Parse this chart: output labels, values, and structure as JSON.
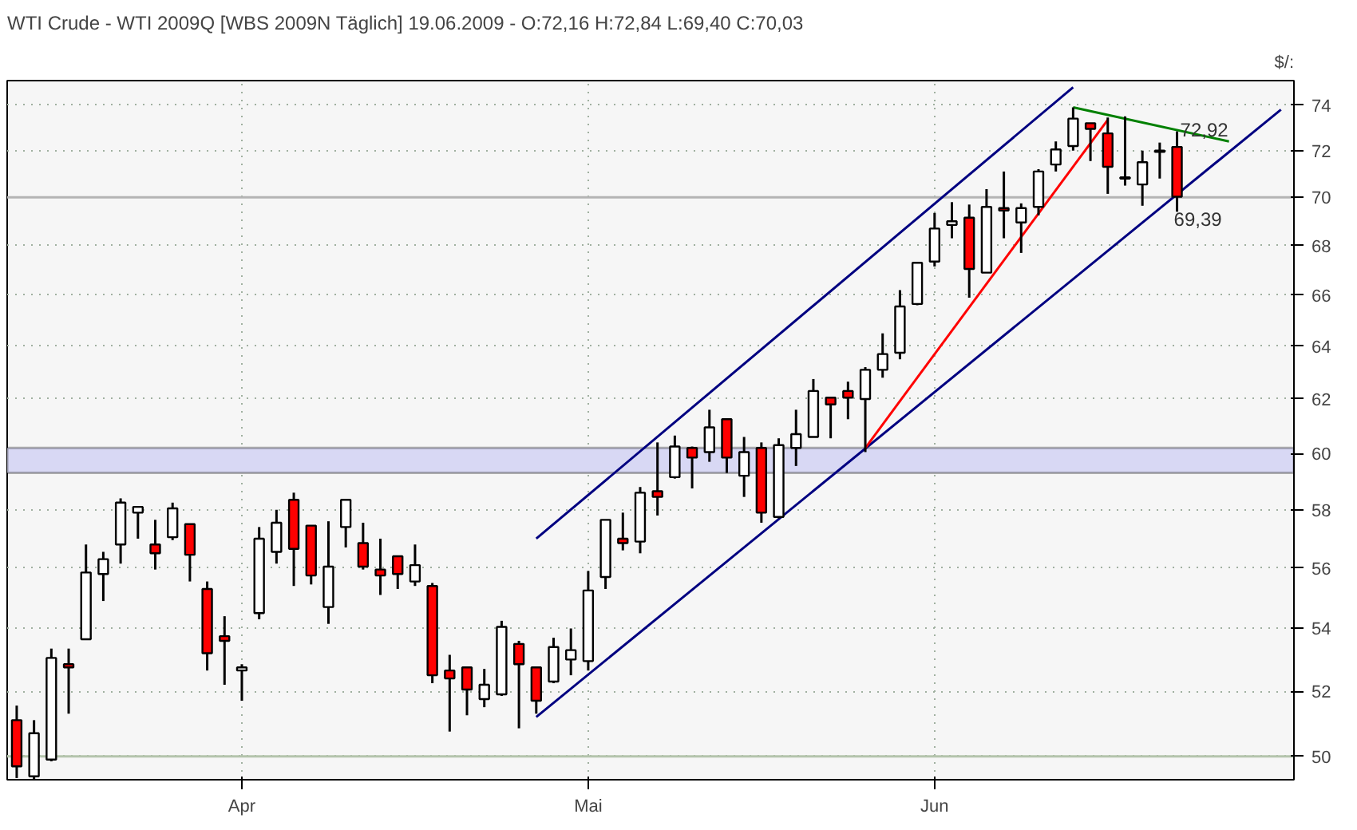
{
  "chart_data": {
    "type": "candlestick",
    "title": "WTI Crude - WTI 2009Q [WBS 2009N Täglich] 19.06.2009 - O:72,16 H:72,84 L:69,40 C:70,03",
    "ylabel": "$/:",
    "categories": [
      null,
      null,
      null,
      null,
      null,
      null,
      null,
      null,
      null,
      null,
      null,
      null,
      null,
      "Apr",
      null,
      null,
      null,
      null,
      null,
      null,
      null,
      null,
      null,
      null,
      null,
      null,
      null,
      null,
      null,
      null,
      null,
      null,
      null,
      "Mai",
      null,
      null,
      null,
      null,
      null,
      null,
      null,
      null,
      null,
      null,
      null,
      null,
      null,
      null,
      null,
      null,
      null,
      null,
      null,
      "Jun",
      null,
      null,
      null,
      null,
      null,
      null,
      null,
      null,
      null,
      null,
      null,
      null,
      null,
      null,
      null,
      null,
      null,
      null,
      null,
      null
    ],
    "ohlc": [
      [
        51.1,
        51.55,
        49.35,
        49.7
      ],
      [
        49.4,
        51.1,
        49.3,
        50.7
      ],
      [
        49.9,
        53.35,
        49.85,
        53.05
      ],
      [
        52.85,
        53.35,
        51.3,
        52.75
      ],
      [
        53.65,
        56.8,
        53.65,
        55.85
      ],
      [
        55.8,
        56.55,
        54.9,
        56.3
      ],
      [
        56.8,
        58.4,
        56.15,
        58.25
      ],
      [
        57.9,
        58.1,
        57.0,
        58.1
      ],
      [
        56.8,
        57.65,
        55.95,
        56.5
      ],
      [
        57.05,
        58.25,
        56.95,
        58.05
      ],
      [
        57.5,
        57.5,
        55.55,
        56.45
      ],
      [
        55.3,
        55.55,
        52.65,
        53.2
      ],
      [
        53.75,
        54.4,
        52.2,
        53.6
      ],
      [
        52.65,
        52.85,
        51.7,
        52.75
      ],
      [
        54.5,
        57.4,
        54.3,
        57.0
      ],
      [
        56.55,
        58.0,
        56.15,
        57.55
      ],
      [
        58.35,
        58.6,
        55.4,
        56.65
      ],
      [
        57.45,
        57.45,
        55.45,
        55.75
      ],
      [
        54.7,
        57.6,
        54.15,
        56.05
      ],
      [
        57.4,
        58.35,
        56.7,
        58.35
      ],
      [
        56.85,
        57.55,
        55.95,
        56.05
      ],
      [
        55.95,
        57.0,
        55.1,
        55.75
      ],
      [
        56.4,
        56.4,
        55.3,
        55.8
      ],
      [
        55.55,
        56.8,
        55.4,
        56.1
      ],
      [
        55.4,
        55.5,
        52.25,
        52.5
      ],
      [
        52.65,
        53.15,
        50.75,
        52.4
      ],
      [
        52.75,
        52.75,
        51.25,
        52.05
      ],
      [
        51.75,
        52.7,
        51.5,
        52.2
      ],
      [
        51.9,
        54.25,
        51.85,
        54.05
      ],
      [
        53.5,
        53.6,
        50.85,
        52.85
      ],
      [
        52.75,
        52.75,
        51.3,
        51.7
      ],
      [
        52.3,
        53.7,
        52.25,
        53.4
      ],
      [
        53.0,
        54.0,
        52.5,
        53.3
      ],
      [
        52.95,
        55.9,
        52.65,
        55.25
      ],
      [
        55.7,
        57.65,
        55.3,
        57.65
      ],
      [
        57.0,
        57.9,
        56.6,
        56.85
      ],
      [
        56.9,
        58.8,
        56.5,
        58.6
      ],
      [
        58.65,
        60.4,
        57.8,
        58.45
      ],
      [
        59.15,
        60.65,
        59.1,
        60.25
      ],
      [
        60.2,
        60.25,
        58.75,
        59.85
      ],
      [
        60.05,
        61.6,
        59.7,
        60.95
      ],
      [
        61.25,
        61.25,
        59.3,
        59.85
      ],
      [
        59.2,
        60.6,
        58.45,
        60.05
      ],
      [
        60.2,
        60.4,
        57.55,
        57.9
      ],
      [
        57.75,
        60.55,
        57.7,
        60.3
      ],
      [
        60.2,
        61.6,
        59.55,
        60.7
      ],
      [
        60.6,
        62.75,
        60.6,
        62.3
      ],
      [
        62.05,
        62.05,
        60.55,
        61.8
      ],
      [
        62.3,
        62.65,
        61.25,
        62.05
      ],
      [
        62.0,
        63.2,
        60.05,
        63.1
      ],
      [
        63.1,
        64.5,
        62.8,
        63.7
      ],
      [
        63.75,
        66.2,
        63.5,
        65.55
      ],
      [
        65.65,
        67.3,
        65.6,
        67.3
      ],
      [
        67.35,
        69.35,
        67.15,
        68.7
      ],
      [
        68.85,
        69.8,
        68.3,
        69.0
      ],
      [
        69.15,
        69.7,
        65.9,
        67.05
      ],
      [
        66.9,
        70.35,
        66.9,
        69.6
      ],
      [
        69.55,
        71.1,
        68.3,
        69.45
      ],
      [
        68.95,
        69.75,
        67.7,
        69.55
      ],
      [
        69.6,
        71.2,
        69.25,
        71.1
      ],
      [
        71.4,
        72.4,
        71.1,
        72.05
      ],
      [
        72.2,
        73.9,
        72.0,
        73.4
      ],
      [
        73.2,
        73.2,
        71.55,
        72.95
      ],
      [
        72.75,
        73.45,
        70.15,
        71.3
      ],
      [
        70.8,
        73.5,
        70.5,
        70.85
      ],
      [
        70.55,
        72.0,
        69.65,
        71.5
      ],
      [
        71.95,
        72.35,
        70.8,
        72.0
      ],
      [
        72.16,
        72.84,
        69.4,
        70.03
      ],
      null,
      null,
      null,
      null,
      null,
      null
    ],
    "colors": [
      "#ff0000",
      "#ffffff",
      "#ffffff",
      "#ff0000",
      "#ffffff",
      "#ffffff",
      "#ffffff",
      "#ffffff",
      "#ff0000",
      "#ffffff",
      "#ff0000",
      "#ff0000",
      "#ff0000",
      "#ffffff",
      "#ffffff",
      "#ffffff",
      "#ff0000",
      "#ff0000",
      "#ffffff",
      "#ffffff",
      "#ff0000",
      "#ff0000",
      "#ff0000",
      "#ffffff",
      "#ff0000",
      "#ff0000",
      "#ff0000",
      "#ffffff",
      "#ffffff",
      "#ff0000",
      "#ff0000",
      "#ffffff",
      "#ffffff",
      "#ffffff",
      "#ffffff",
      "#ff0000",
      "#ffffff",
      "#ff0000",
      "#ffffff",
      "#ff0000",
      "#ffffff",
      "#ff0000",
      "#ffffff",
      "#ff0000",
      "#ffffff",
      "#ffffff",
      "#ffffff",
      "#ff0000",
      "#ff0000",
      "#ffffff",
      "#ffffff",
      "#ffffff",
      "#ffffff",
      "#ffffff",
      "#ffffff",
      "#ff0000",
      "#ffffff",
      "#ff0000",
      "#ffffff",
      "#ffffff",
      "#ffffff",
      "#ffffff",
      "#ff0000",
      "#ff0000",
      "#ffffff",
      "#ffffff",
      "#ffffff",
      "#ff0000",
      null,
      null,
      null,
      null,
      null,
      null
    ],
    "series": [
      {
        "type": "line",
        "color": "#000080",
        "values": [
          null,
          null,
          null,
          null,
          null,
          null,
          null,
          null,
          null,
          null,
          null,
          null,
          null,
          null,
          null,
          null,
          null,
          null,
          null,
          null,
          null,
          null,
          null,
          null,
          null,
          null,
          null,
          null,
          null,
          null,
          57.0,
          null,
          null,
          null,
          null,
          null,
          null,
          null,
          null,
          null,
          null,
          null,
          null,
          null,
          null,
          null,
          null,
          null,
          null,
          null,
          null,
          null,
          null,
          null,
          null,
          null,
          null,
          null,
          null,
          null,
          null,
          74.8,
          null,
          null,
          null,
          null,
          null,
          null,
          null,
          null,
          null,
          null,
          null,
          null
        ]
      },
      {
        "type": "line",
        "color": "#000080",
        "values": [
          null,
          null,
          null,
          null,
          null,
          null,
          null,
          null,
          null,
          null,
          null,
          null,
          null,
          null,
          null,
          null,
          null,
          null,
          null,
          null,
          null,
          null,
          null,
          null,
          null,
          null,
          null,
          null,
          null,
          null,
          51.2,
          null,
          null,
          null,
          null,
          null,
          null,
          null,
          null,
          null,
          null,
          null,
          null,
          null,
          null,
          null,
          null,
          null,
          null,
          null,
          null,
          null,
          null,
          null,
          null,
          null,
          null,
          null,
          null,
          null,
          null,
          null,
          null,
          null,
          null,
          null,
          null,
          null,
          null,
          null,
          null,
          null,
          null,
          73.8
        ]
      },
      {
        "type": "line",
        "color": "#ff0000",
        "values": [
          null,
          null,
          null,
          null,
          null,
          null,
          null,
          null,
          null,
          null,
          null,
          null,
          null,
          null,
          null,
          null,
          null,
          null,
          null,
          null,
          null,
          null,
          null,
          null,
          null,
          null,
          null,
          null,
          null,
          null,
          null,
          null,
          null,
          null,
          null,
          null,
          null,
          null,
          null,
          null,
          null,
          null,
          null,
          null,
          null,
          null,
          null,
          null,
          null,
          60.2,
          null,
          null,
          null,
          null,
          null,
          null,
          null,
          null,
          null,
          null,
          null,
          null,
          null,
          73.35,
          null,
          null,
          null,
          null,
          null,
          null,
          null,
          null,
          null,
          null
        ]
      },
      {
        "type": "line",
        "color": "#008000",
        "values": [
          null,
          null,
          null,
          null,
          null,
          null,
          null,
          null,
          null,
          null,
          null,
          null,
          null,
          null,
          null,
          null,
          null,
          null,
          null,
          null,
          null,
          null,
          null,
          null,
          null,
          null,
          null,
          null,
          null,
          null,
          null,
          null,
          null,
          null,
          null,
          null,
          null,
          null,
          null,
          null,
          null,
          null,
          null,
          null,
          null,
          null,
          null,
          null,
          null,
          null,
          null,
          null,
          null,
          null,
          null,
          null,
          null,
          null,
          null,
          null,
          null,
          73.9,
          null,
          null,
          null,
          null,
          null,
          null,
          null,
          null,
          72.4,
          null,
          null,
          null
        ]
      }
    ],
    "bands": [
      {
        "axis": "y",
        "from": 59.3,
        "to": 60.2,
        "color": "#d8d8f4"
      }
    ],
    "ref_lines": [
      {
        "axis": "y",
        "value": 70,
        "color": "#b4b4b4"
      },
      {
        "axis": "y",
        "value": 50,
        "color": "#b4c4ac"
      }
    ],
    "annotations": [
      {
        "text": "72,92",
        "y": 72.92
      },
      "69,39"
    ],
    "log": "y",
    "ylim": [
      49.3,
      75.1
    ],
    "yticks": [
      50,
      52,
      54,
      56,
      58,
      60,
      62,
      64,
      66,
      68,
      70,
      72,
      74
    ],
    "grid": true
  }
}
